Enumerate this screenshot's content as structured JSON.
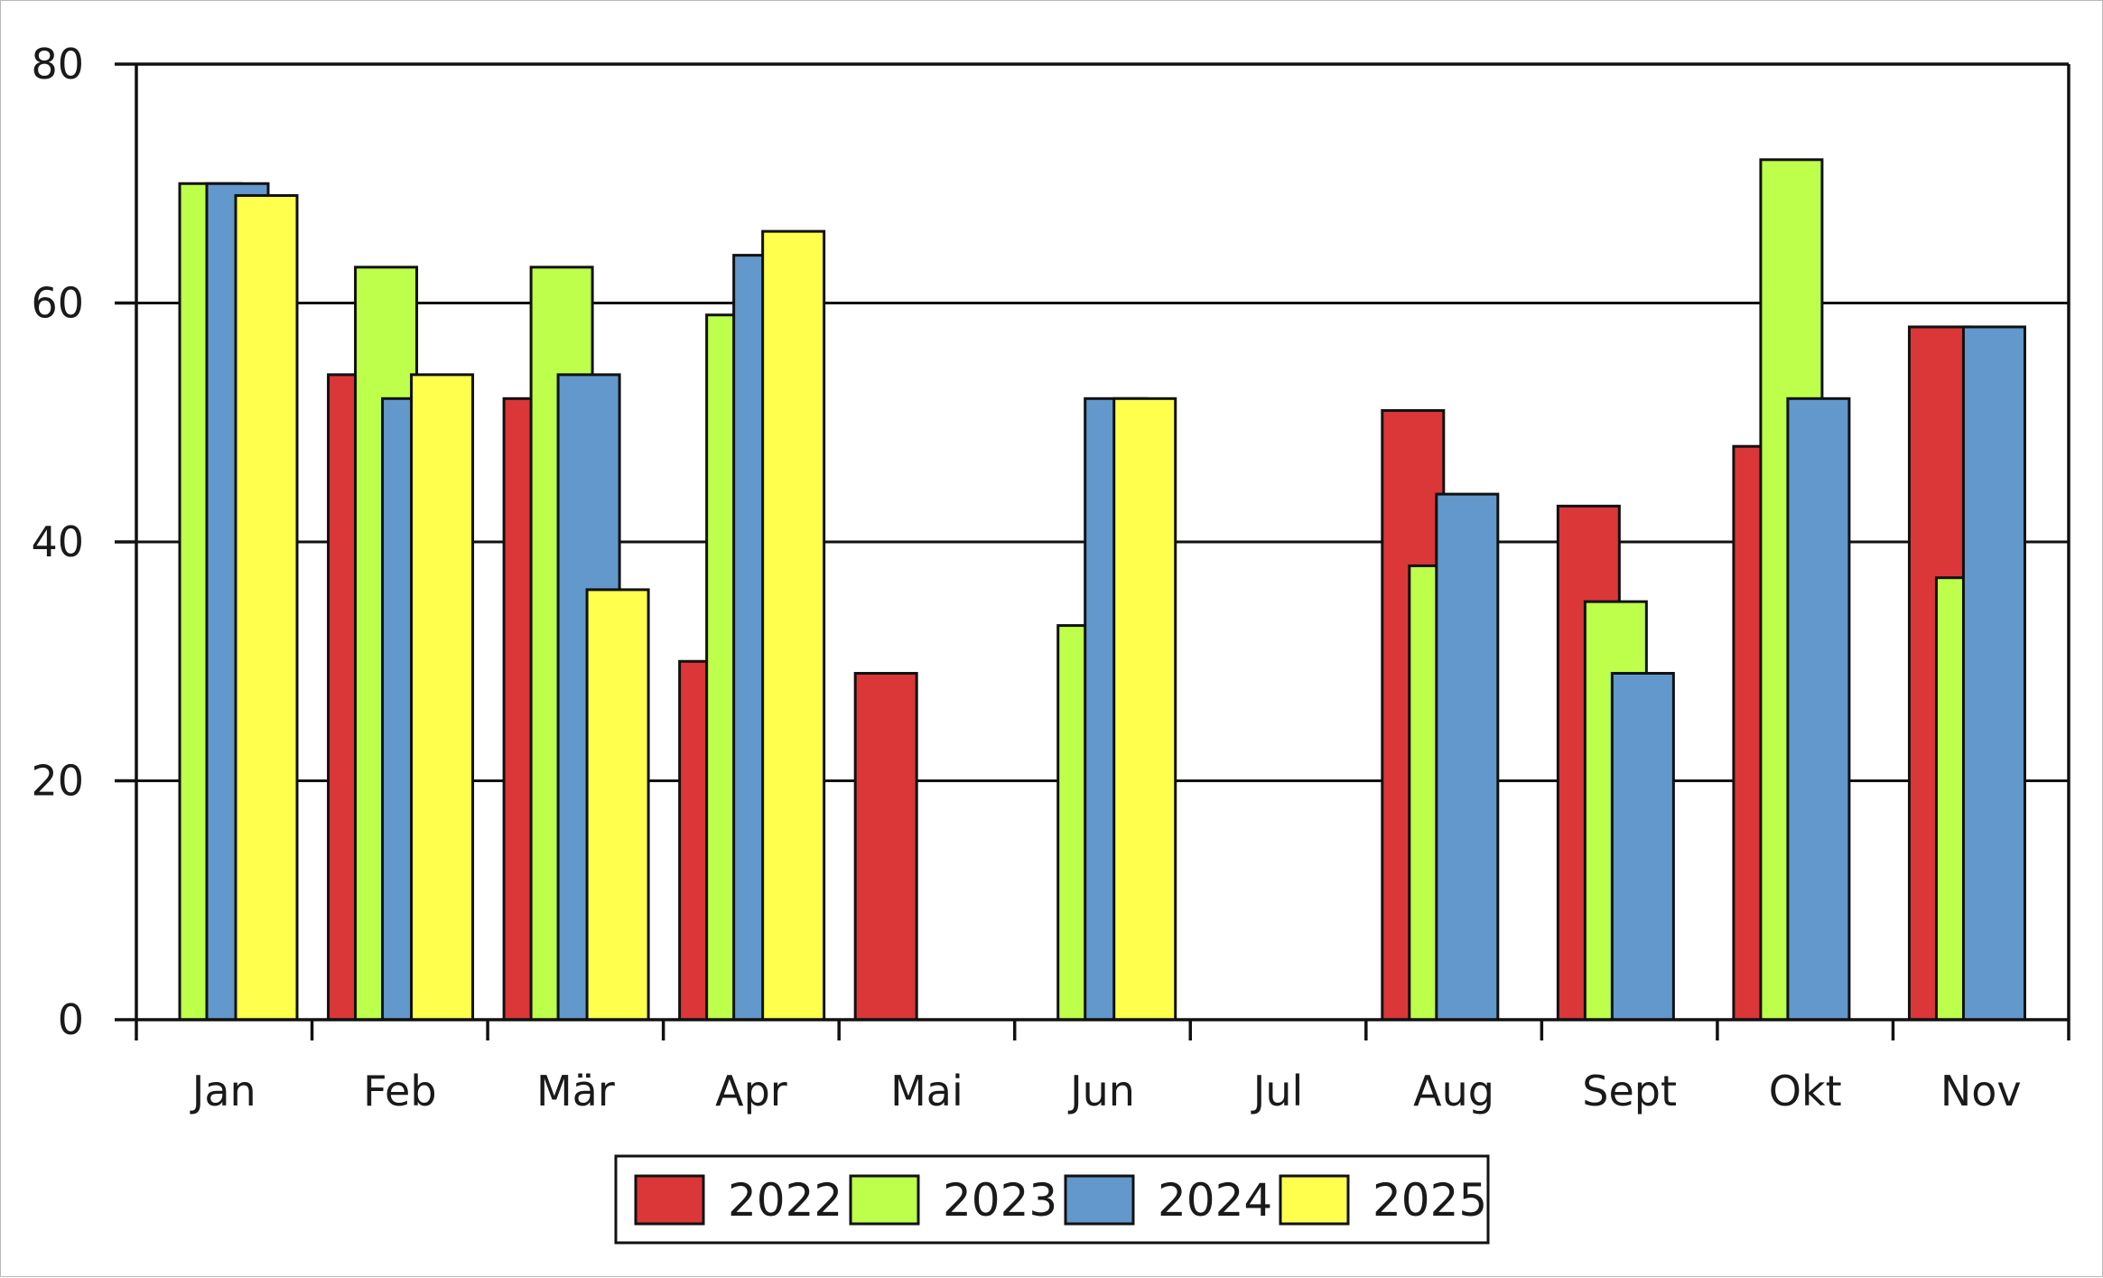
{
  "chart_data": {
    "type": "bar",
    "title": "",
    "xlabel": "",
    "ylabel": "",
    "ylim": [
      0,
      80
    ],
    "yticks": [
      0,
      20,
      40,
      60,
      80
    ],
    "grid": "horizontal",
    "legend_position": "bottom-center",
    "categories": [
      "Jan",
      "Feb",
      "Mär",
      "Apr",
      "Mai",
      "Jun",
      "Jul",
      "Aug",
      "Sept",
      "Okt",
      "Nov"
    ],
    "series": [
      {
        "name": "2022",
        "color": "#db3638",
        "values": [
          null,
          54,
          52,
          30,
          29,
          null,
          null,
          51,
          43,
          48,
          58
        ]
      },
      {
        "name": "2023",
        "color": "#bdff4a",
        "values": [
          70,
          63,
          63,
          59,
          null,
          33,
          null,
          38,
          35,
          72,
          37
        ]
      },
      {
        "name": "2024",
        "color": "#6298cb",
        "values": [
          70,
          52,
          54,
          64,
          null,
          52,
          null,
          44,
          29,
          52,
          58
        ]
      },
      {
        "name": "2025",
        "color": "#ffff4d",
        "values": [
          69,
          54,
          36,
          66,
          null,
          52,
          null,
          null,
          null,
          null,
          null
        ]
      }
    ]
  }
}
